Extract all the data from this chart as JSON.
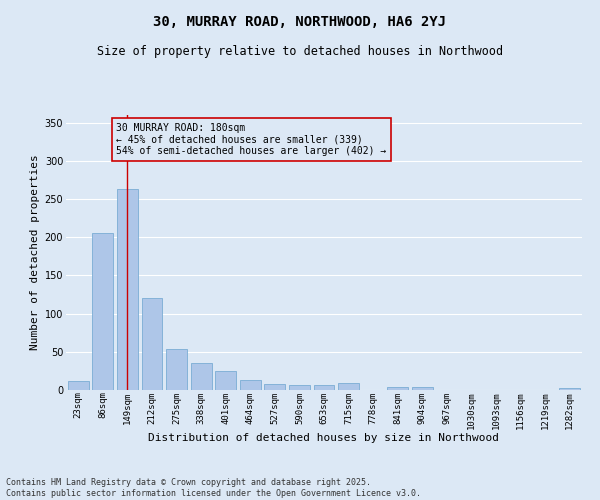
{
  "title_line1": "30, MURRAY ROAD, NORTHWOOD, HA6 2YJ",
  "title_line2": "Size of property relative to detached houses in Northwood",
  "xlabel": "Distribution of detached houses by size in Northwood",
  "ylabel": "Number of detached properties",
  "categories": [
    "23sqm",
    "86sqm",
    "149sqm",
    "212sqm",
    "275sqm",
    "338sqm",
    "401sqm",
    "464sqm",
    "527sqm",
    "590sqm",
    "653sqm",
    "715sqm",
    "778sqm",
    "841sqm",
    "904sqm",
    "967sqm",
    "1030sqm",
    "1093sqm",
    "1156sqm",
    "1219sqm",
    "1282sqm"
  ],
  "values": [
    12,
    206,
    263,
    121,
    54,
    36,
    25,
    13,
    8,
    7,
    7,
    9,
    0,
    4,
    4,
    0,
    0,
    0,
    0,
    0,
    2
  ],
  "bar_color": "#aec6e8",
  "bar_edge_color": "#7aadd4",
  "background_color": "#dce8f5",
  "grid_color": "#ffffff",
  "vline_x": 2,
  "vline_color": "#cc0000",
  "annotation_text": "30 MURRAY ROAD: 180sqm\n← 45% of detached houses are smaller (339)\n54% of semi-detached houses are larger (402) →",
  "annotation_box_facecolor": "#dce8f5",
  "annotation_box_edgecolor": "#cc0000",
  "ylim": [
    0,
    360
  ],
  "yticks": [
    0,
    50,
    100,
    150,
    200,
    250,
    300,
    350
  ],
  "footer_line1": "Contains HM Land Registry data © Crown copyright and database right 2025.",
  "footer_line2": "Contains public sector information licensed under the Open Government Licence v3.0."
}
